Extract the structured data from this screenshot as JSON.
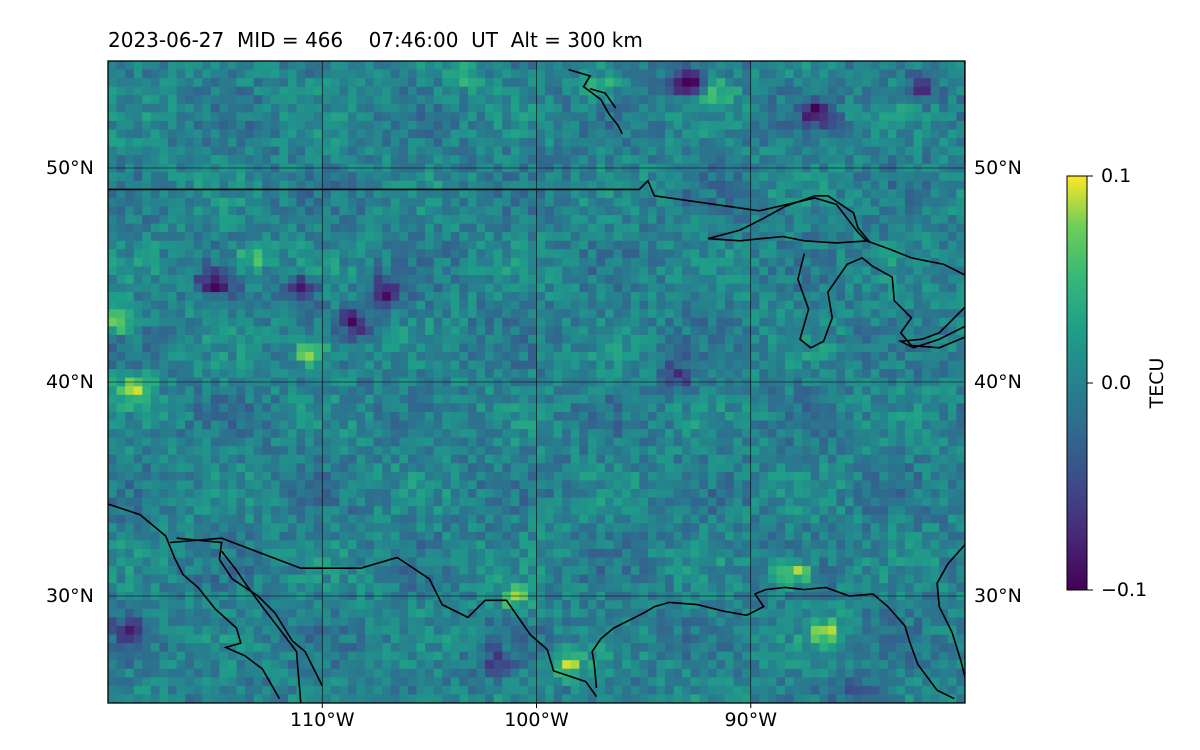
{
  "title": {
    "date": "2023-06-27",
    "mid": "MID = 466",
    "time": "07:46:00  UT",
    "alt": "Alt = 300 km"
  },
  "axes": {
    "lon_range": [
      -120,
      -80
    ],
    "lat_range": [
      25,
      55
    ],
    "lon_ticks": [
      {
        "value": -110,
        "label": "110°W"
      },
      {
        "value": -100,
        "label": "100°W"
      },
      {
        "value": -90,
        "label": "90°W"
      }
    ],
    "lat_ticks": [
      {
        "value": 50,
        "label": "50°N"
      },
      {
        "value": 40,
        "label": "40°N"
      },
      {
        "value": 30,
        "label": "30°N"
      }
    ],
    "grid": true
  },
  "colorbar": {
    "label": "TECU",
    "colormap": "viridis",
    "range": [
      -0.1,
      0.1
    ],
    "ticks": [
      {
        "value": 0.1,
        "label": "0.1"
      },
      {
        "value": 0.0,
        "label": "0.0"
      },
      {
        "value": -0.1,
        "label": "−0.1"
      }
    ]
  },
  "map_field": {
    "quantity": "TEC perturbation",
    "units": "TECU",
    "base_level": 0.0,
    "noise_amplitude": 0.025,
    "anomalies": [
      {
        "lon": -115,
        "lat": 44.6,
        "value": -0.095
      },
      {
        "lon": -111,
        "lat": 44.3,
        "value": -0.09
      },
      {
        "lon": -108.5,
        "lat": 42.8,
        "value": -0.08
      },
      {
        "lon": -107,
        "lat": 44.3,
        "value": -0.085
      },
      {
        "lon": -113.2,
        "lat": 45.8,
        "value": 0.065
      },
      {
        "lon": -110.5,
        "lat": 41.4,
        "value": 0.085
      },
      {
        "lon": -118.8,
        "lat": 39.7,
        "value": 0.1
      },
      {
        "lon": -119.6,
        "lat": 42.9,
        "value": 0.09
      },
      {
        "lon": -93,
        "lat": 54.0,
        "value": -0.1
      },
      {
        "lon": -87,
        "lat": 52.6,
        "value": -0.08
      },
      {
        "lon": -82,
        "lat": 53.7,
        "value": -0.06
      },
      {
        "lon": -91.5,
        "lat": 53.5,
        "value": 0.05
      },
      {
        "lon": -88,
        "lat": 31.1,
        "value": 0.09
      },
      {
        "lon": -86.5,
        "lat": 28.3,
        "value": 0.07
      },
      {
        "lon": -101,
        "lat": 29.9,
        "value": 0.06
      },
      {
        "lon": -98.5,
        "lat": 26.8,
        "value": 0.07
      },
      {
        "lon": -119,
        "lat": 28.5,
        "value": -0.06
      },
      {
        "lon": -102,
        "lat": 27.0,
        "value": -0.05
      },
      {
        "lon": -93.3,
        "lat": 40.4,
        "value": -0.06
      },
      {
        "lon": -97,
        "lat": 53.8,
        "value": 0.05
      },
      {
        "lon": -103.5,
        "lat": 54.3,
        "value": 0.045
      },
      {
        "lon": -85,
        "lat": 25.5,
        "value": -0.06
      }
    ]
  },
  "coastlines": [
    [
      [
        -120,
        49.0
      ],
      [
        -95.2,
        49.0
      ],
      [
        -94.8,
        49.4
      ],
      [
        -94.5,
        48.7
      ],
      [
        -89.6,
        48.0
      ],
      [
        -88.3,
        48.3
      ],
      [
        -87,
        48.6
      ],
      [
        -86,
        48.3
      ],
      [
        -85,
        47.0
      ],
      [
        -84.6,
        46.6
      ],
      [
        -83.5,
        46.2
      ],
      [
        -82.5,
        45.8
      ],
      [
        -81,
        45.5
      ],
      [
        -80,
        45.0
      ]
    ],
    [
      [
        -92,
        46.7
      ],
      [
        -90.5,
        47.1
      ],
      [
        -89.5,
        47.6
      ],
      [
        -88.4,
        48.2
      ],
      [
        -87,
        48.7
      ],
      [
        -86.4,
        48.7
      ],
      [
        -85.2,
        47.9
      ],
      [
        -85,
        47.2
      ],
      [
        -84.5,
        46.6
      ],
      [
        -86,
        46.5
      ],
      [
        -87.5,
        46.6
      ],
      [
        -88.5,
        46.8
      ],
      [
        -89.5,
        46.7
      ],
      [
        -90.5,
        46.6
      ],
      [
        -92,
        46.7
      ]
    ],
    [
      [
        -87.5,
        46.0
      ],
      [
        -87.8,
        44.8
      ],
      [
        -87.3,
        43.4
      ],
      [
        -87.7,
        42.0
      ],
      [
        -87.2,
        41.6
      ],
      [
        -86.6,
        41.9
      ],
      [
        -86.2,
        43.0
      ],
      [
        -86.4,
        44.2
      ],
      [
        -85.5,
        45.5
      ],
      [
        -84.8,
        45.8
      ],
      [
        -84.3,
        45.4
      ],
      [
        -83.4,
        44.9
      ],
      [
        -83.3,
        43.8
      ],
      [
        -82.5,
        43.0
      ],
      [
        -83.0,
        42.3
      ],
      [
        -82.5,
        41.7
      ],
      [
        -81.2,
        41.6
      ],
      [
        -80.0,
        42.1
      ]
    ],
    [
      [
        -80,
        43.5
      ],
      [
        -81.2,
        42.3
      ],
      [
        -82,
        42.0
      ],
      [
        -83.0,
        41.9
      ],
      [
        -82.4,
        41.6
      ],
      [
        -81.2,
        42.0
      ],
      [
        -80,
        42.6
      ]
    ],
    [
      [
        -98.5,
        54.6
      ],
      [
        -97.5,
        54.3
      ],
      [
        -97.8,
        53.8
      ],
      [
        -97.0,
        53.2
      ],
      [
        -96.6,
        52.5
      ],
      [
        -96.2,
        52.0
      ],
      [
        -96.0,
        51.6
      ]
    ],
    [
      [
        -97.5,
        53.7
      ],
      [
        -96.8,
        53.5
      ],
      [
        -96.3,
        52.8
      ]
    ],
    [
      [
        -120,
        34.3
      ],
      [
        -118.5,
        33.8
      ],
      [
        -117.3,
        32.8
      ],
      [
        -116.9,
        31.8
      ],
      [
        -116.5,
        31.0
      ],
      [
        -115.8,
        30.4
      ],
      [
        -115.0,
        29.4
      ],
      [
        -114.0,
        28.5
      ],
      [
        -113.8,
        27.8
      ],
      [
        -114.5,
        27.6
      ],
      [
        -113.6,
        27.2
      ],
      [
        -112.8,
        26.6
      ],
      [
        -112.0,
        25.2
      ]
    ],
    [
      [
        -116.8,
        32.7
      ],
      [
        -114.7,
        32.5
      ],
      [
        -114.8,
        31.7
      ],
      [
        -114.2,
        30.8
      ],
      [
        -113.0,
        30.0
      ],
      [
        -112.2,
        29.2
      ],
      [
        -111.4,
        27.9
      ],
      [
        -110.8,
        27.4
      ],
      [
        -110.0,
        25.8
      ]
    ],
    [
      [
        -114.7,
        32.1
      ],
      [
        -114.0,
        31.2
      ],
      [
        -113.6,
        30.6
      ],
      [
        -112.8,
        29.5
      ],
      [
        -111.8,
        28.2
      ],
      [
        -111.2,
        27.4
      ],
      [
        -111.0,
        25.0
      ]
    ],
    [
      [
        -117.1,
        32.5
      ],
      [
        -114.7,
        32.7
      ],
      [
        -111.0,
        31.3
      ],
      [
        -108.2,
        31.3
      ],
      [
        -106.5,
        31.8
      ],
      [
        -105,
        30.8
      ],
      [
        -104.4,
        29.6
      ],
      [
        -103.2,
        29.0
      ],
      [
        -102.4,
        29.8
      ],
      [
        -101.4,
        29.8
      ],
      [
        -100.3,
        28.2
      ],
      [
        -99.5,
        27.5
      ],
      [
        -99.2,
        26.5
      ],
      [
        -97.7,
        26.0
      ],
      [
        -97.2,
        25.3
      ]
    ],
    [
      [
        -97.2,
        25.7
      ],
      [
        -97.3,
        26.8
      ],
      [
        -97.4,
        27.4
      ],
      [
        -97.0,
        28.0
      ],
      [
        -96.4,
        28.5
      ],
      [
        -95.0,
        29.2
      ],
      [
        -94.5,
        29.5
      ],
      [
        -93.8,
        29.7
      ],
      [
        -92.5,
        29.6
      ],
      [
        -91.3,
        29.3
      ],
      [
        -90.2,
        29.1
      ],
      [
        -89.4,
        29.5
      ],
      [
        -89.8,
        30.1
      ],
      [
        -89.3,
        30.3
      ],
      [
        -88.4,
        30.4
      ],
      [
        -87.5,
        30.3
      ],
      [
        -86.5,
        30.4
      ],
      [
        -85.4,
        30.0
      ],
      [
        -84.3,
        30.1
      ],
      [
        -83.6,
        29.5
      ],
      [
        -82.8,
        28.6
      ],
      [
        -82.6,
        27.9
      ],
      [
        -82.2,
        26.8
      ],
      [
        -81.3,
        25.6
      ],
      [
        -80.5,
        25.2
      ]
    ],
    [
      [
        -80,
        32.4
      ],
      [
        -80.8,
        31.5
      ],
      [
        -81.3,
        30.6
      ],
      [
        -81.2,
        29.5
      ],
      [
        -80.6,
        28.3
      ],
      [
        -80.2,
        27.0
      ],
      [
        -80.0,
        26.2
      ]
    ],
    [
      [
        -80.0,
        55
      ],
      [
        -80.0,
        52.0
      ],
      [
        -80.0,
        51.5
      ],
      [
        -80.0,
        50.2
      ]
    ]
  ]
}
